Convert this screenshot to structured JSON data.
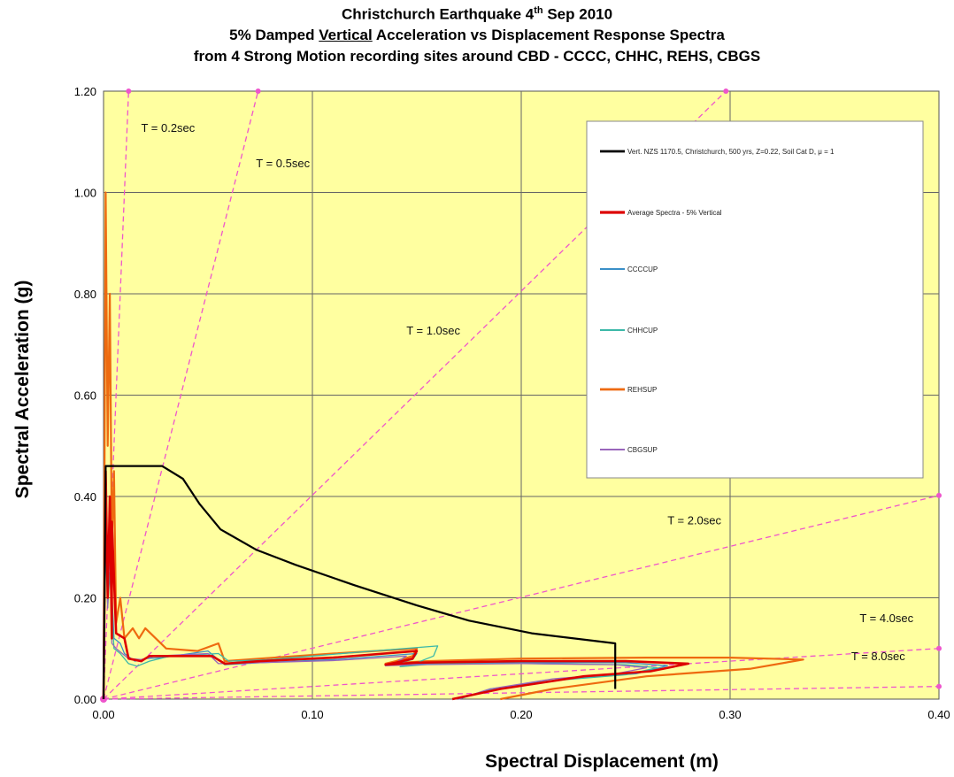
{
  "title": {
    "line1_a": "Christchurch Earthquake 4",
    "line1_sup": "th",
    "line1_b": " Sep 2010",
    "line2_a": "5% Damped ",
    "line2_u": "Vertical",
    "line2_b": " Acceleration vs Displacement Response Spectra",
    "line3": "from 4 Strong Motion recording sites around CBD - CCCC, CHHC, REHS, CBGS"
  },
  "colors": {
    "plot_bg": "#ffffa0",
    "grid": "#666666",
    "period_lines": "#ee55cc",
    "nzs": "#000000",
    "average": "#dd0000",
    "cccc": "#3a8fc8",
    "chhc": "#3cb8a8",
    "rehs": "#ee6a10",
    "cbgs": "#9966bb"
  },
  "chart_data": {
    "type": "line",
    "xlabel": "Spectral Displacement (m)",
    "ylabel": "Spectral Acceleration (g)",
    "xlim": [
      0,
      0.4
    ],
    "ylim": [
      0,
      1.2
    ],
    "x_ticks": [
      "0.00",
      "0.10",
      "0.20",
      "0.30",
      "0.40"
    ],
    "y_ticks": [
      "0.00",
      "0.20",
      "0.40",
      "0.60",
      "0.80",
      "1.00",
      "1.20"
    ],
    "grid": true,
    "legend_position": "top-right",
    "period_lines": [
      {
        "label": "T = 0.2sec",
        "period": 0.2,
        "end": [
          0.012,
          1.2
        ]
      },
      {
        "label": "T = 0.5sec",
        "period": 0.5,
        "end": [
          0.074,
          1.2
        ]
      },
      {
        "label": "T = 1.0sec",
        "period": 1.0,
        "end": [
          0.298,
          1.2
        ]
      },
      {
        "label": "T = 2.0sec",
        "period": 2.0,
        "end": [
          0.4,
          0.402
        ]
      },
      {
        "label": "T = 4.0sec",
        "period": 4.0,
        "end": [
          0.4,
          0.1
        ]
      },
      {
        "label": "T = 8.0sec",
        "period": 8.0,
        "end": [
          0.4,
          0.025
        ]
      }
    ],
    "series": [
      {
        "name": "Vert. NZS 1170.5, Christchurch, 500 yrs, Z=0.22, Soil Cat D, μ = 1",
        "x": [
          0,
          0.001,
          0.028,
          0.038,
          0.046,
          0.056,
          0.073,
          0.092,
          0.12,
          0.15,
          0.175,
          0.205,
          0.245,
          0.245
        ],
        "y": [
          0.0,
          0.46,
          0.46,
          0.435,
          0.385,
          0.335,
          0.295,
          0.265,
          0.225,
          0.185,
          0.155,
          0.13,
          0.11,
          0.02
        ]
      },
      {
        "name": "Average Spectra - 5% Vertical",
        "x": [
          0,
          0.001,
          0.002,
          0.003,
          0.004,
          0.004,
          0.006,
          0.01,
          0.012,
          0.018,
          0.022,
          0.03,
          0.052,
          0.058,
          0.075,
          0.11,
          0.15,
          0.148,
          0.14,
          0.135,
          0.15,
          0.2,
          0.25,
          0.28,
          0.262,
          0.23,
          0.19,
          0.167
        ],
        "y": [
          0,
          0.45,
          0.2,
          0.4,
          0.12,
          0.35,
          0.13,
          0.12,
          0.08,
          0.075,
          0.085,
          0.085,
          0.085,
          0.07,
          0.075,
          0.082,
          0.095,
          0.08,
          0.072,
          0.068,
          0.072,
          0.075,
          0.075,
          0.07,
          0.055,
          0.045,
          0.02,
          0.0
        ]
      },
      {
        "name": "CCCCUP",
        "x": [
          0,
          0.001,
          0.002,
          0.003,
          0.005,
          0.008,
          0.01,
          0.015,
          0.02,
          0.028,
          0.05,
          0.058,
          0.075,
          0.11,
          0.15,
          0.148,
          0.14,
          0.135,
          0.15,
          0.2,
          0.25,
          0.27,
          0.255,
          0.22,
          0.185,
          0.17
        ],
        "y": [
          0,
          0.38,
          0.2,
          0.3,
          0.12,
          0.11,
          0.09,
          0.075,
          0.08,
          0.082,
          0.095,
          0.068,
          0.072,
          0.078,
          0.09,
          0.078,
          0.07,
          0.066,
          0.07,
          0.072,
          0.072,
          0.066,
          0.05,
          0.04,
          0.02,
          0.0
        ]
      },
      {
        "name": "CHHCUP",
        "x": [
          0,
          0.001,
          0.002,
          0.003,
          0.005,
          0.008,
          0.012,
          0.016,
          0.022,
          0.032,
          0.055,
          0.06,
          0.08,
          0.12,
          0.16,
          0.158,
          0.15,
          0.142,
          0.16,
          0.205,
          0.25,
          0.265,
          0.25,
          0.22,
          0.185,
          0.17
        ],
        "y": [
          0,
          0.3,
          0.18,
          0.25,
          0.1,
          0.09,
          0.07,
          0.065,
          0.075,
          0.085,
          0.09,
          0.075,
          0.078,
          0.092,
          0.105,
          0.085,
          0.072,
          0.064,
          0.07,
          0.07,
          0.068,
          0.062,
          0.048,
          0.038,
          0.018,
          0.0
        ]
      },
      {
        "name": "REHSUP",
        "x": [
          0,
          0.001,
          0.002,
          0.003,
          0.004,
          0.005,
          0.006,
          0.008,
          0.01,
          0.014,
          0.017,
          0.02,
          0.03,
          0.045,
          0.055,
          0.058,
          0.075,
          0.11,
          0.15,
          0.148,
          0.14,
          0.135,
          0.155,
          0.2,
          0.26,
          0.3,
          0.335,
          0.31,
          0.26,
          0.215,
          0.19
        ],
        "y": [
          0,
          1.0,
          0.5,
          0.8,
          0.3,
          0.45,
          0.15,
          0.2,
          0.12,
          0.14,
          0.12,
          0.14,
          0.1,
          0.095,
          0.11,
          0.075,
          0.08,
          0.09,
          0.1,
          0.085,
          0.075,
          0.07,
          0.075,
          0.08,
          0.082,
          0.082,
          0.078,
          0.06,
          0.045,
          0.02,
          0.0
        ]
      },
      {
        "name": "CBGSUP",
        "x": [
          0,
          0.001,
          0.002,
          0.003,
          0.004,
          0.006,
          0.009,
          0.012,
          0.018,
          0.025,
          0.05,
          0.055,
          0.075,
          0.11,
          0.145,
          0.14,
          0.135,
          0.15,
          0.2,
          0.245,
          0.26,
          0.245,
          0.215,
          0.185,
          0.17
        ],
        "y": [
          0,
          0.36,
          0.18,
          0.3,
          0.11,
          0.1,
          0.09,
          0.08,
          0.078,
          0.085,
          0.09,
          0.07,
          0.072,
          0.076,
          0.085,
          0.072,
          0.066,
          0.068,
          0.07,
          0.068,
          0.062,
          0.05,
          0.04,
          0.02,
          0.0
        ]
      }
    ]
  }
}
